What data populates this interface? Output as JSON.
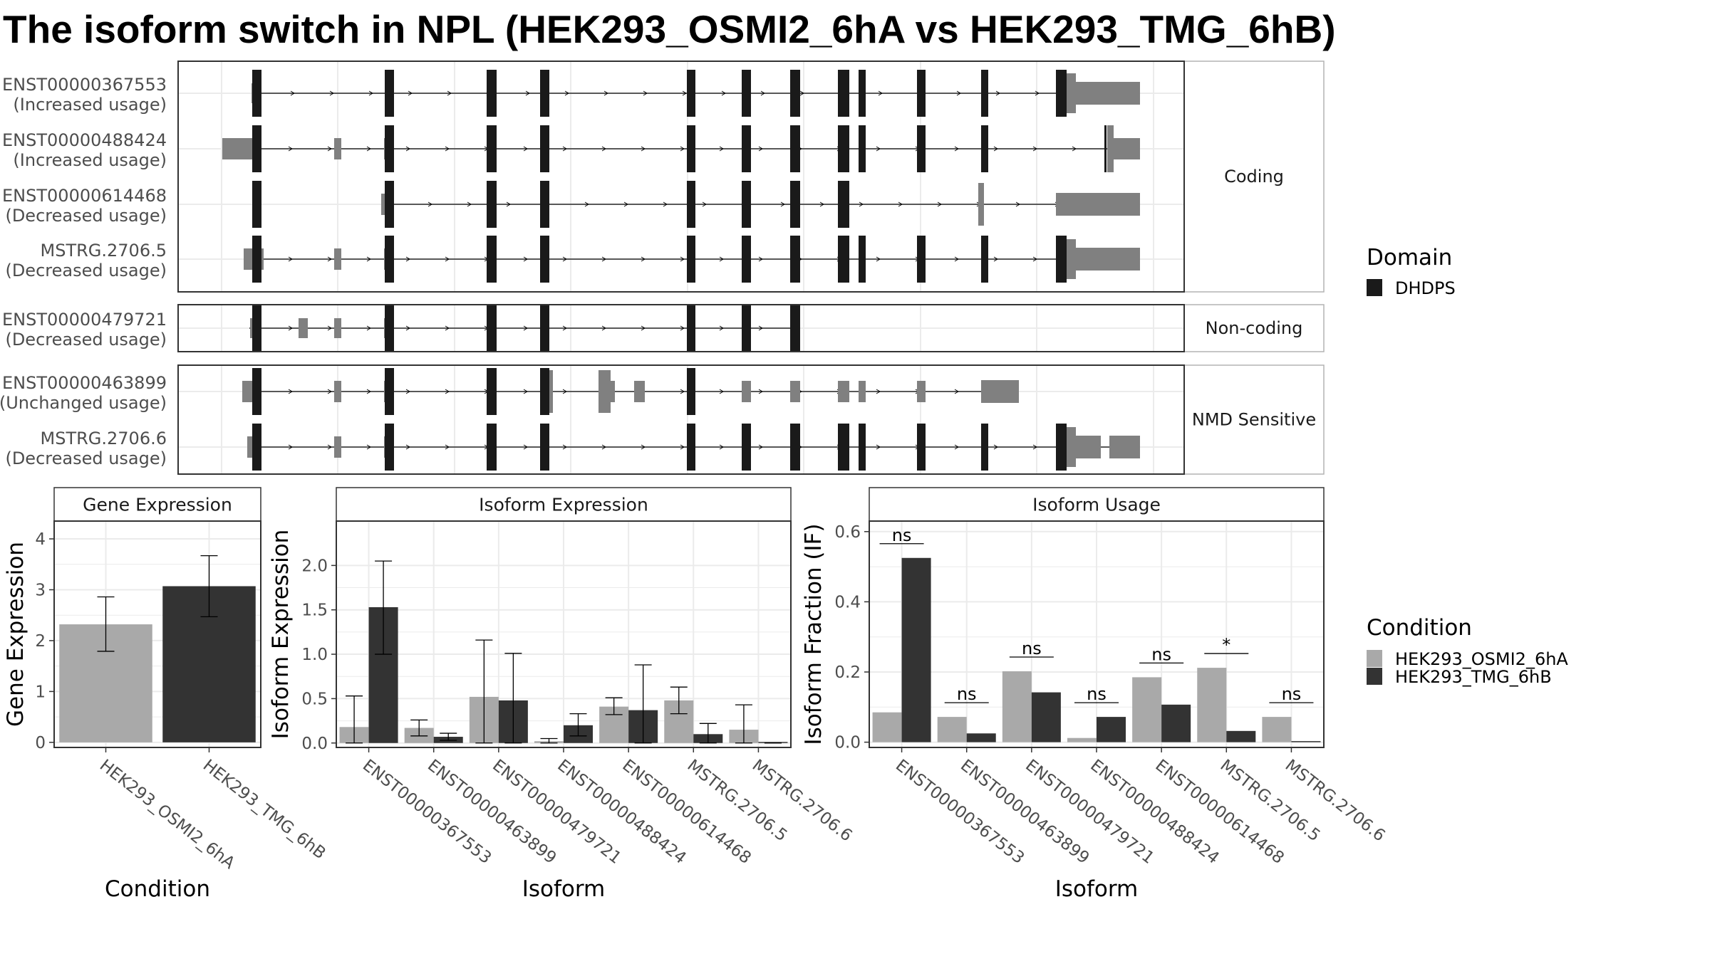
{
  "title": "The isoform switch in NPL (HEK293_OSMI2_6hA vs HEK293_TMG_6hB)",
  "colors": {
    "domain": "#1a1a1a",
    "utr": "#808080",
    "cond1": "#a9a9a9",
    "cond2": "#333333",
    "grid": "#ebebeb",
    "panel_border": "#333333",
    "strip_border": "#b3b3b3"
  },
  "structure": {
    "groups": [
      {
        "label": "Coding",
        "transcripts": [
          {
            "id": "ENST00000367553",
            "usage": "(Increased usage)"
          },
          {
            "id": "ENST00000488424",
            "usage": "(Increased usage)"
          },
          {
            "id": "ENST00000614468",
            "usage": "(Decreased usage)"
          },
          {
            "id": "MSTRG.2706.5",
            "usage": "(Decreased usage)"
          }
        ]
      },
      {
        "label": "Non-coding",
        "transcripts": [
          {
            "id": "ENST00000479721",
            "usage": "(Decreased usage)"
          }
        ]
      },
      {
        "label": "NMD Sensitive",
        "transcripts": [
          {
            "id": "ENST00000463899",
            "usage": "(Unchanged usage)"
          },
          {
            "id": "MSTRG.2706.6",
            "usage": "(Decreased usage)"
          }
        ]
      }
    ]
  },
  "legend_domain": {
    "title": "Domain",
    "items": [
      "DHDPS"
    ]
  },
  "legend_condition": {
    "title": "Condition",
    "items": [
      "HEK293_OSMI2_6hA",
      "HEK293_TMG_6hB"
    ]
  },
  "chart_data": [
    {
      "type": "bar",
      "title": "Gene Expression",
      "xlabel": "Condition",
      "ylabel": "Gene Expression",
      "categories": [
        "HEK293_OSMI2_6hA",
        "HEK293_TMG_6hB"
      ],
      "values": [
        2.32,
        3.07
      ],
      "ci_low": [
        1.79,
        2.47
      ],
      "ci_high": [
        2.86,
        3.67
      ],
      "yticks": [
        0,
        1,
        2,
        3,
        4
      ],
      "ylim": [
        -0.1,
        4.35
      ]
    },
    {
      "type": "bar",
      "title": "Isoform Expression",
      "xlabel": "Isoform",
      "ylabel": "Isoform Expression",
      "categories": [
        "ENST00000367553",
        "ENST00000463899",
        "ENST00000479721",
        "ENST00000488424",
        "ENST00000614468",
        "MSTRG.2706.5",
        "MSTRG.2706.6"
      ],
      "yticks": [
        "0.0",
        "0.5",
        "1.0",
        "1.5",
        "2.0"
      ],
      "ylim": [
        -0.05,
        2.5
      ],
      "series": [
        {
          "name": "HEK293_OSMI2_6hA",
          "values": [
            0.18,
            0.17,
            0.52,
            0.02,
            0.41,
            0.48,
            0.15
          ],
          "ci_low": [
            0.0,
            0.08,
            0.0,
            0.0,
            0.32,
            0.33,
            0.0
          ],
          "ci_high": [
            0.53,
            0.26,
            1.16,
            0.05,
            0.51,
            0.63,
            0.43
          ]
        },
        {
          "name": "HEK293_TMG_6hB",
          "values": [
            1.53,
            0.07,
            0.48,
            0.2,
            0.37,
            0.1,
            0.0
          ],
          "ci_low": [
            1.0,
            0.03,
            0.0,
            0.08,
            0.0,
            0.0,
            0.0
          ],
          "ci_high": [
            2.05,
            0.11,
            1.01,
            0.33,
            0.88,
            0.22,
            0.0
          ]
        }
      ]
    },
    {
      "type": "bar",
      "title": "Isoform Usage",
      "xlabel": "Isoform",
      "ylabel": "Isoform Fraction (IF)",
      "categories": [
        "ENST00000367553",
        "ENST00000463899",
        "ENST00000479721",
        "ENST00000488424",
        "ENST00000614468",
        "MSTRG.2706.5",
        "MSTRG.2706.6"
      ],
      "yticks": [
        "0.0",
        "0.2",
        "0.4",
        "0.6"
      ],
      "ylim": [
        -0.015,
        0.63
      ],
      "series": [
        {
          "name": "HEK293_OSMI2_6hA",
          "values": [
            0.085,
            0.072,
            0.202,
            0.012,
            0.185,
            0.212,
            0.072
          ]
        },
        {
          "name": "HEK293_TMG_6hB",
          "values": [
            0.525,
            0.025,
            0.142,
            0.072,
            0.107,
            0.032,
            0.0
          ]
        }
      ],
      "significance": [
        "ns",
        "ns",
        "ns",
        "ns",
        "ns",
        "*",
        "ns"
      ]
    }
  ]
}
